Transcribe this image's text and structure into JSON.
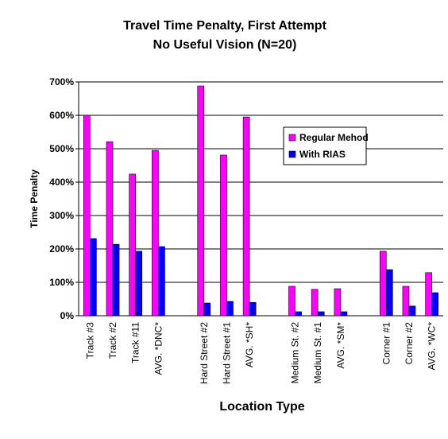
{
  "chart_data": {
    "type": "bar",
    "title": "Travel Time Penalty, First Attempt",
    "subtitle": "No Useful Vision (N=20)",
    "x_label": "Location Type",
    "y_label": "Time Penalty",
    "categories": [
      "Track #3",
      "Track #2",
      "Track #11",
      "AVG. *DNC*",
      null,
      "Hard Street #2",
      "Hard Street #1",
      "AVG. *SH*",
      null,
      "Medium St. #2",
      "Medium St. #1",
      "AVG. *SM*",
      null,
      "Corner #1",
      "Corner #2",
      "AVG. *WC*"
    ],
    "series": [
      {
        "name": "Regular Mehod",
        "color": "#ff00ff",
        "values": [
          600,
          521,
          424,
          495,
          null,
          688,
          481,
          595,
          null,
          88,
          79,
          81,
          null,
          193,
          88,
          129
        ]
      },
      {
        "name": "With RIAS",
        "color": "#0000ff",
        "values": [
          231,
          214,
          193,
          207,
          null,
          38,
          43,
          40,
          null,
          12,
          12,
          12,
          null,
          138,
          29,
          69
        ]
      }
    ],
    "ylim": [
      0,
      700
    ],
    "yticks": [
      {
        "value": 0,
        "label": "0%"
      },
      {
        "value": 100,
        "label": "100%"
      },
      {
        "value": 200,
        "label": "200%"
      },
      {
        "value": 300,
        "label": "300%"
      },
      {
        "value": 400,
        "label": "400%"
      },
      {
        "value": 500,
        "label": "500%"
      },
      {
        "value": 600,
        "label": "600%"
      },
      {
        "value": 700,
        "label": "700%"
      }
    ],
    "grid": true,
    "legend": "upper-right"
  }
}
